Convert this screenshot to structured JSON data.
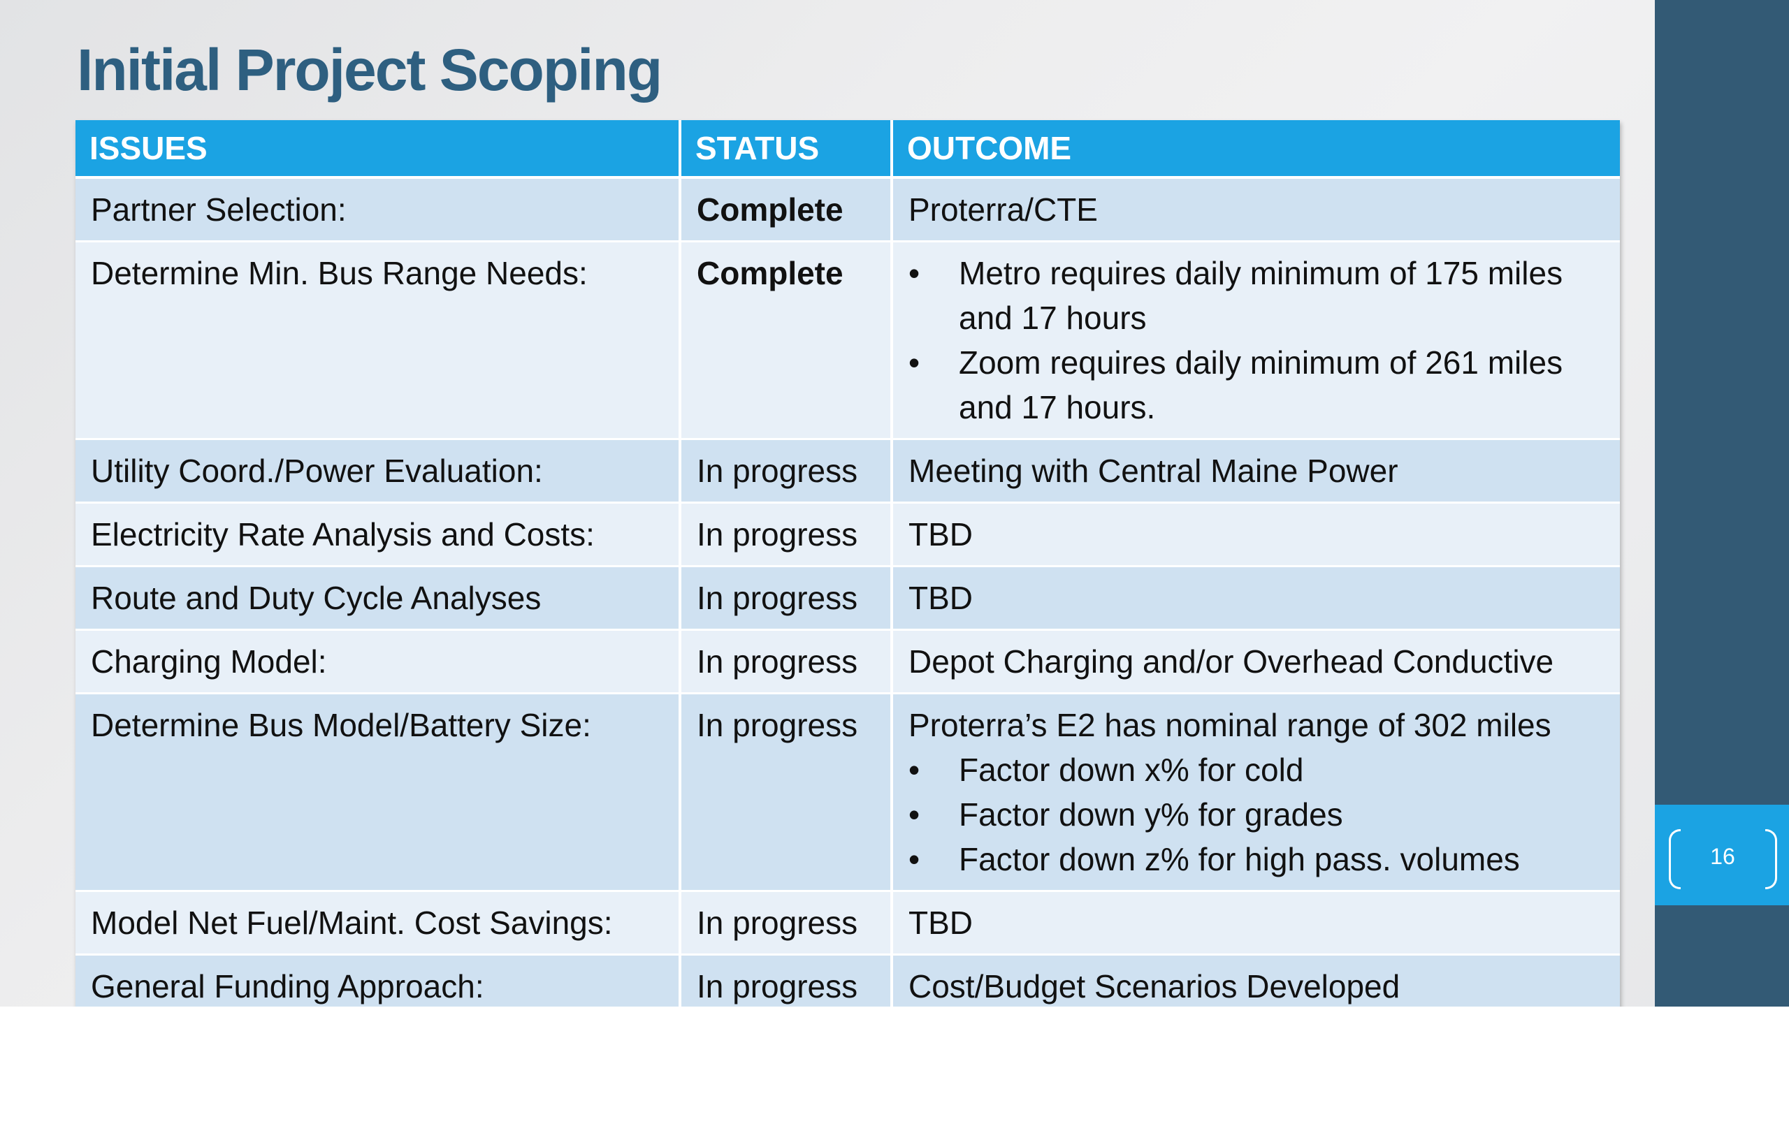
{
  "slide": {
    "title": "Initial Project Scoping",
    "page_number": "16"
  },
  "table": {
    "headers": [
      "ISSUES",
      "STATUS",
      "OUTCOME"
    ],
    "rows": [
      {
        "issue": "Partner Selection:",
        "status": "Complete",
        "outcome_text": "Proterra/CTE",
        "outcome_bullets": []
      },
      {
        "issue": "Determine Min. Bus Range Needs:",
        "status": "Complete",
        "outcome_text": "",
        "outcome_bullets": [
          "Metro requires daily minimum of 175 miles and 17 hours",
          "Zoom requires daily minimum of 261 miles and 17 hours."
        ]
      },
      {
        "issue": "Utility Coord./Power Evaluation:",
        "status": "In progress",
        "outcome_text": "Meeting with Central Maine Power",
        "outcome_bullets": []
      },
      {
        "issue": "Electricity Rate Analysis and Costs:",
        "status": "In progress",
        "outcome_text": "TBD",
        "outcome_bullets": []
      },
      {
        "issue": "Route and Duty Cycle Analyses",
        "status": "In progress",
        "outcome_text": "TBD",
        "outcome_bullets": []
      },
      {
        "issue": "Charging Model:",
        "status": "In progress",
        "outcome_text": "Depot Charging and/or Overhead Conductive",
        "outcome_bullets": []
      },
      {
        "issue": "Determine Bus Model/Battery Size:",
        "status": "In progress",
        "outcome_text": "Proterra’s E2 has nominal range of 302 miles",
        "outcome_bullets": [
          "Factor down x% for cold",
          "Factor down y% for grades",
          "Factor down z% for high pass. volumes"
        ]
      },
      {
        "issue": "Model Net Fuel/Maint. Cost Savings:",
        "status": "In progress",
        "outcome_text": "TBD",
        "outcome_bullets": []
      },
      {
        "issue": "General Funding Approach:",
        "status": "In progress",
        "outcome_text": "Cost/Budget Scenarios Developed",
        "outcome_bullets": []
      }
    ]
  },
  "colors": {
    "title": "#2e5f80",
    "header_fill": "#1ba3e3",
    "row_odd": "#cfe1f1",
    "row_even": "#e8f0f8",
    "sidebar": "#335a75",
    "page_tab": "#1ba3e3"
  }
}
